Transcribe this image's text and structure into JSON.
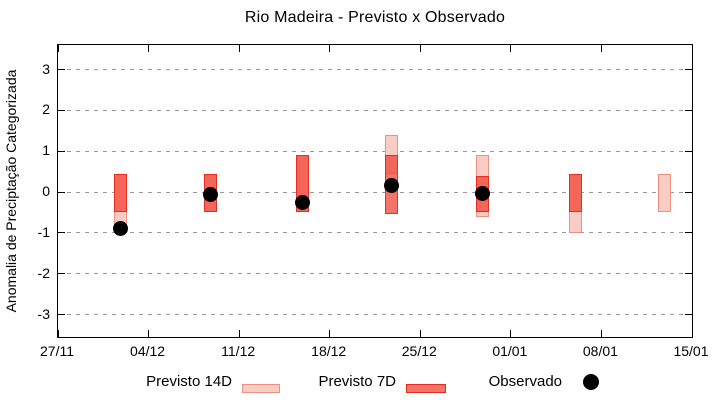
{
  "title": "Rio Madeira - Previsto x Observado",
  "colors": {
    "p14_fill": "#f9cdc5",
    "p14_border": "#ef9180",
    "p7_fill_base": "#f03e2f",
    "p7_fill_alpha": 0.72,
    "p7_border": "#e62e20",
    "observado": "#000000",
    "grid": "#999999",
    "axis": "#000000"
  },
  "legend": {
    "items": [
      {
        "label": "Previsto 14D",
        "swatch": "previsto-14d"
      },
      {
        "label": "Previsto 7D",
        "swatch": "previsto-7d"
      },
      {
        "label": "Observado",
        "swatch": "observado-dot"
      }
    ]
  },
  "chart_data": {
    "type": "bar",
    "subtype": "range-bars-with-points",
    "title": "Rio Madeira - Previsto x Observado",
    "xlabel": "",
    "ylabel": "Anomalia de Preciptação Categorizada",
    "ylim": [
      -3.55,
      3.6
    ],
    "y_ticks": [
      3,
      2,
      1,
      0,
      -1,
      -2,
      -3
    ],
    "x_tick_labels": [
      "27/11",
      "04/12",
      "11/12",
      "18/12",
      "25/12",
      "01/01",
      "08/01",
      "15/01"
    ],
    "x_span_days": 49,
    "grid": "horizontal-dashed",
    "legend_position": "bottom-center",
    "groups": [
      {
        "date": "02/12",
        "day_offset": 4.8,
        "previsto_14d": [
          -1.0,
          0.45
        ],
        "previsto_7d": [
          -0.5,
          0.45
        ],
        "observado": -0.9
      },
      {
        "date": "09/12",
        "day_offset": 11.8,
        "previsto_14d": [
          -0.5,
          0.45
        ],
        "previsto_7d": [
          -0.5,
          0.45
        ],
        "observado": -0.05
      },
      {
        "date": "16/12",
        "day_offset": 18.9,
        "previsto_14d": [
          -0.5,
          0.9
        ],
        "previsto_7d": [
          -0.5,
          0.9
        ],
        "observado": -0.25
      },
      {
        "date": "23/12",
        "day_offset": 25.8,
        "previsto_14d": [
          0.45,
          1.4
        ],
        "previsto_7d": [
          -0.55,
          0.9
        ],
        "observado": 0.15
      },
      {
        "date": "30/12",
        "day_offset": 32.8,
        "previsto_14d": [
          -0.6,
          0.9
        ],
        "previsto_7d": [
          -0.5,
          0.4
        ],
        "observado": -0.03
      },
      {
        "date": "06/01",
        "day_offset": 40.0,
        "previsto_14d": [
          -1.0,
          0.45
        ],
        "previsto_7d": [
          -0.5,
          0.45
        ],
        "observado": null
      },
      {
        "date": "13/01",
        "day_offset": 46.9,
        "previsto_14d": [
          -0.5,
          0.45
        ],
        "previsto_7d": null,
        "observado": null
      }
    ]
  }
}
